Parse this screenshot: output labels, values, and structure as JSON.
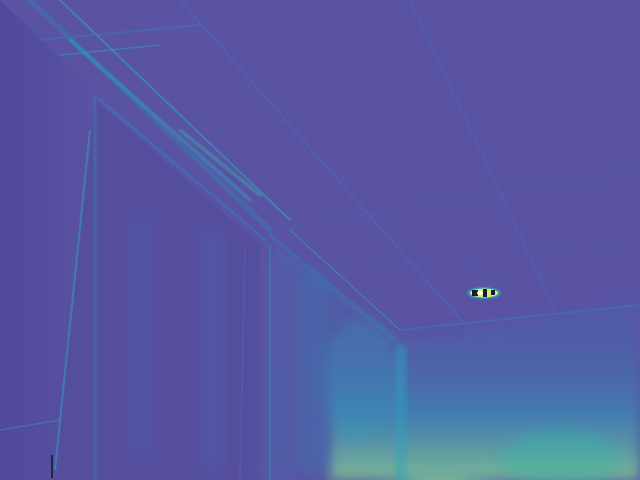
{
  "image": {
    "kind": "false-color depth / feature map of an indoor corridor ceiling",
    "palette": {
      "base": "#5a52a3",
      "dark": "#4f489a",
      "mid": "#3f73b0",
      "cyan": "#2ea3bd",
      "teal": "#35b7a7",
      "green": "#8fd88a",
      "yellow": "#d7ec6e"
    },
    "objects": [
      "ceiling-panels",
      "left-wall-doorframe",
      "far-wall-glow",
      "ceiling-light-fixture"
    ]
  }
}
